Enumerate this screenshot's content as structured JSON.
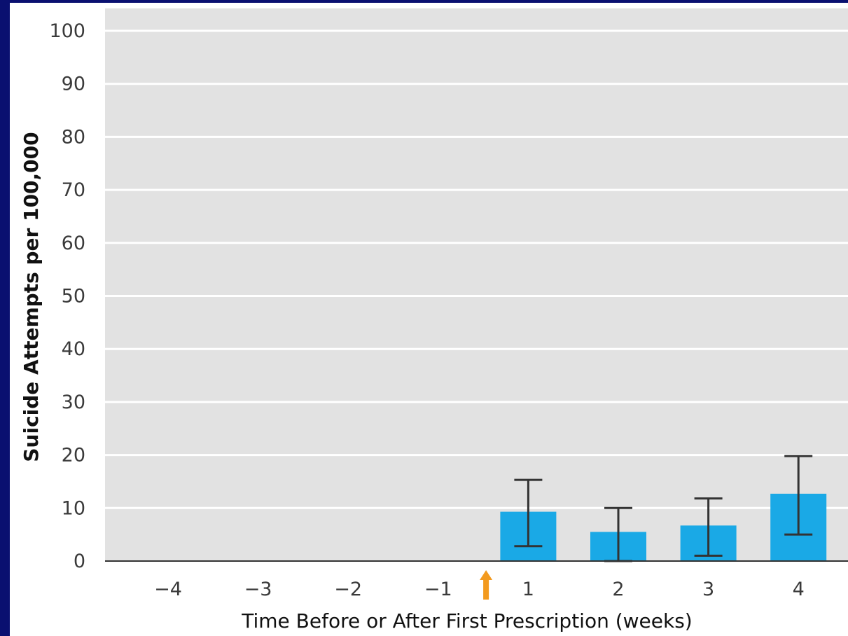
{
  "chart_data": {
    "type": "bar",
    "title": "",
    "xlabel": "Time Before or After First Prescription (weeks)",
    "ylabel": "Suicide Attempts per 100,000",
    "ylim": [
      0,
      100
    ],
    "yticks": [
      "0",
      "10",
      "20",
      "30",
      "40",
      "50",
      "60",
      "70",
      "80",
      "90",
      "100"
    ],
    "categories": [
      "−4",
      "−3",
      "−2",
      "−1",
      "1",
      "2",
      "3",
      "4"
    ],
    "values": [
      0,
      0,
      0,
      0,
      9.3,
      5.5,
      6.7,
      12.7
    ],
    "error_low": [
      null,
      null,
      null,
      null,
      2.8,
      0,
      1.0,
      5.0
    ],
    "error_high": [
      null,
      null,
      null,
      null,
      15.3,
      10.0,
      11.8,
      19.8
    ],
    "marker": {
      "type": "arrow",
      "position": "between -1 and 1",
      "meaning": "first prescription"
    },
    "grid": true,
    "legend": "none",
    "colors": {
      "bar": "#1aa9e6",
      "plot_background": "#e2e2e2",
      "gridline": "#ffffff",
      "arrow": "#f39a1e",
      "error_bar": "#333333",
      "slide_background": "#0a1070"
    }
  }
}
